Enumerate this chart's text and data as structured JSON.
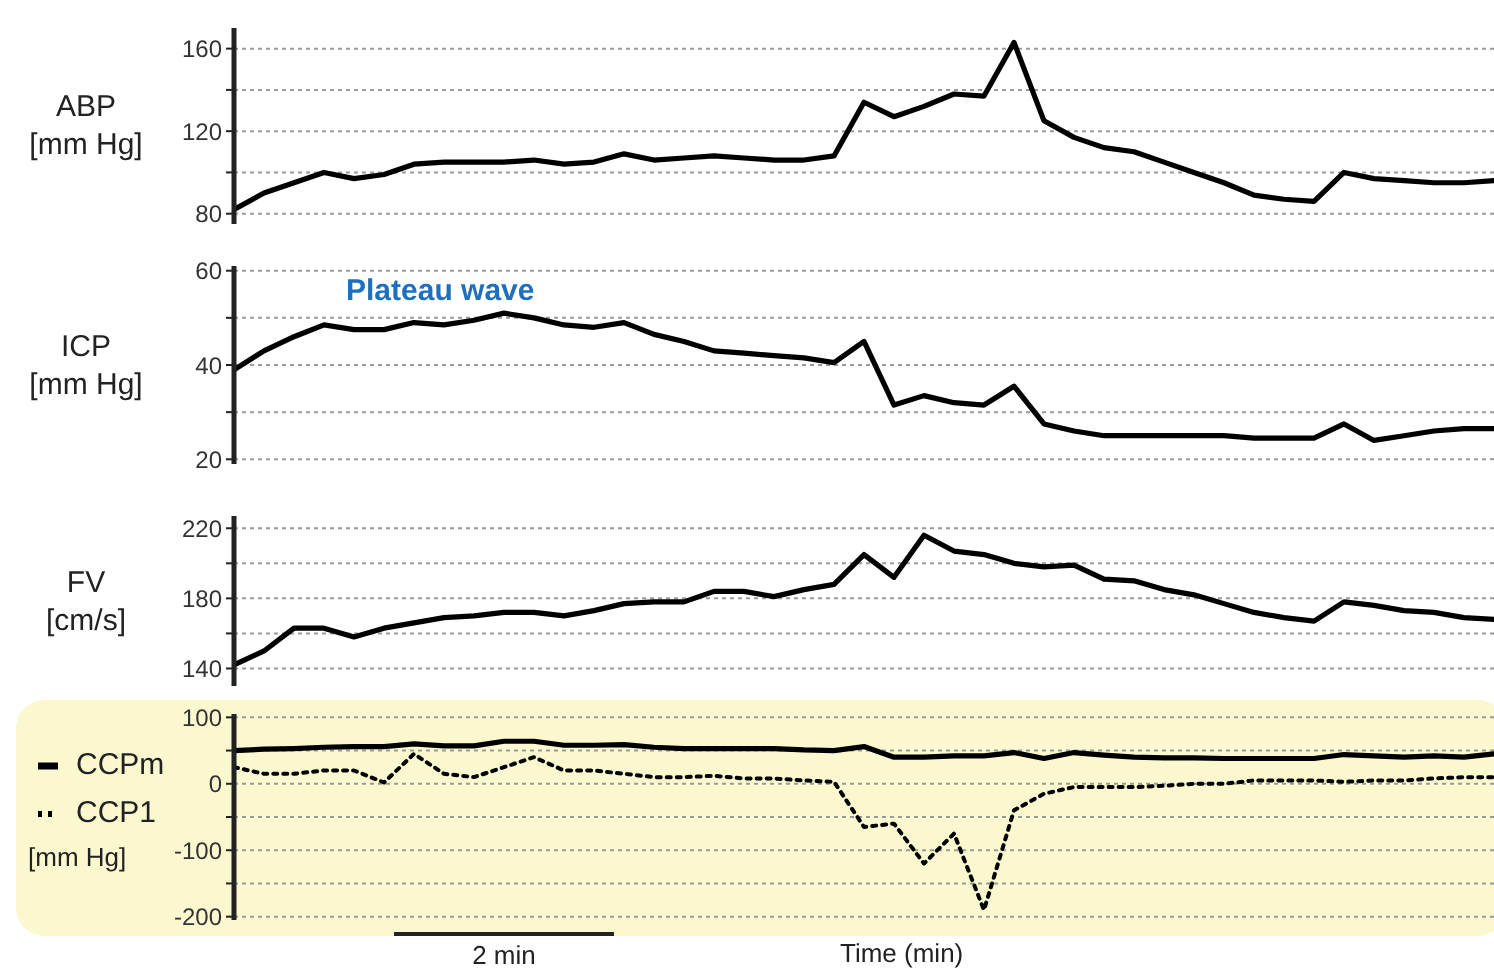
{
  "chart_data": [
    {
      "type": "line",
      "ylabel": "ABP\n[mm Hg]",
      "categories": [
        null,
        null,
        null,
        null,
        null,
        null,
        null,
        null,
        null,
        null,
        null,
        null,
        null,
        null,
        null,
        null,
        null,
        null,
        null,
        null,
        null,
        null,
        null,
        null,
        null,
        null,
        null,
        null,
        null,
        null,
        null,
        null,
        null,
        null,
        null,
        null,
        null,
        null,
        null,
        null,
        null,
        null,
        null
      ],
      "values": [
        82,
        90,
        95,
        100,
        97,
        99,
        104,
        105,
        105,
        105,
        106,
        104,
        105,
        109,
        106,
        107,
        108,
        107,
        106,
        106,
        108,
        134,
        127,
        132,
        138,
        137,
        163,
        125,
        117,
        112,
        110,
        105,
        100,
        95,
        89,
        87,
        86,
        100,
        97,
        96,
        95,
        95,
        96
      ],
      "color": "#000000",
      "ylim": [
        75,
        170
      ],
      "yticks": [
        80,
        {
          "value": 100,
          "label": null
        },
        120,
        {
          "value": 140,
          "label": null
        },
        160
      ],
      "grid": true,
      "tick_labels": "y",
      "legend": false,
      "marker": "none",
      "line_style": "solid"
    },
    {
      "type": "line",
      "ylabel": "ICP\n[mm Hg]",
      "annotations": [
        "Plateau wave"
      ],
      "categories": [
        null,
        null,
        null,
        null,
        null,
        null,
        null,
        null,
        null,
        null,
        null,
        null,
        null,
        null,
        null,
        null,
        null,
        null,
        null,
        null,
        null,
        null,
        null,
        null,
        null,
        null,
        null,
        null,
        null,
        null,
        null,
        null,
        null,
        null,
        null,
        null,
        null,
        null,
        null,
        null,
        null,
        null,
        null
      ],
      "values": [
        39,
        43,
        46,
        48.5,
        47.5,
        47.5,
        49,
        48.5,
        49.5,
        51,
        50,
        48.5,
        48,
        49,
        46.5,
        45,
        43,
        42.5,
        42,
        41.5,
        40.5,
        45,
        31.5,
        33.5,
        32,
        31.5,
        35.5,
        27.5,
        26,
        25,
        25,
        25,
        25,
        25,
        24.5,
        24.5,
        24.5,
        27.5,
        24,
        25,
        26,
        26.5,
        26.5
      ],
      "color": "#000000",
      "ylim": [
        19,
        61
      ],
      "yticks": [
        20,
        {
          "value": 30,
          "label": null
        },
        40,
        {
          "value": 50,
          "label": null
        },
        60
      ],
      "grid": true,
      "tick_labels": "y",
      "legend": false,
      "marker": "none",
      "line_style": "solid"
    },
    {
      "type": "line",
      "ylabel": "FV\n[cm/s]",
      "categories": [
        null,
        null,
        null,
        null,
        null,
        null,
        null,
        null,
        null,
        null,
        null,
        null,
        null,
        null,
        null,
        null,
        null,
        null,
        null,
        null,
        null,
        null,
        null,
        null,
        null,
        null,
        null,
        null,
        null,
        null,
        null,
        null,
        null,
        null,
        null,
        null,
        null,
        null,
        null,
        null,
        null,
        null,
        null
      ],
      "values": [
        142,
        150,
        163,
        163,
        158,
        163,
        166,
        169,
        170,
        172,
        172,
        170,
        173,
        177,
        178,
        178,
        184,
        184,
        181,
        185,
        188,
        205,
        192,
        216,
        207,
        205,
        200,
        198,
        199,
        191,
        190,
        185,
        182,
        177,
        172,
        169,
        167,
        178,
        176,
        173,
        172,
        169,
        168
      ],
      "color": "#000000",
      "ylim": [
        130,
        227
      ],
      "yticks": [
        140,
        {
          "value": 160,
          "label": null
        },
        180,
        {
          "value": 200,
          "label": null
        },
        220
      ],
      "grid": true,
      "tick_labels": "y",
      "legend": false,
      "marker": "none",
      "line_style": "solid"
    },
    {
      "type": "line",
      "ylabel": "[mm Hg]",
      "xlabel": "Time (min)",
      "annotations": [
        "2 min"
      ],
      "categories": [
        null,
        null,
        null,
        null,
        null,
        null,
        null,
        null,
        null,
        null,
        null,
        null,
        null,
        null,
        null,
        null,
        null,
        null,
        null,
        null,
        null,
        null,
        null,
        null,
        null,
        null,
        null,
        null,
        null,
        null,
        null,
        null,
        null,
        null,
        null,
        null,
        null,
        null,
        null,
        null,
        null,
        null,
        null
      ],
      "series": [
        {
          "name": "CCPm",
          "color": "#000000",
          "line_style": "solid",
          "values": [
            50,
            52,
            53,
            55,
            56,
            56,
            60,
            57,
            57,
            64,
            64,
            58,
            58,
            59,
            55,
            53,
            53,
            53,
            53,
            51,
            50,
            56,
            40,
            40,
            42,
            42,
            47,
            38,
            47,
            43,
            40,
            39,
            39,
            38,
            38,
            38,
            38,
            44,
            42,
            40,
            42,
            40,
            45
          ]
        },
        {
          "name": "CCP1",
          "color": "#000000",
          "line_style": "dotted",
          "values": [
            25,
            15,
            15,
            20,
            20,
            2,
            45,
            15,
            10,
            25,
            40,
            20,
            20,
            15,
            10,
            10,
            12,
            8,
            8,
            5,
            3,
            -65,
            -60,
            -120,
            -75,
            -190,
            -40,
            -15,
            -5,
            -5,
            -5,
            -3,
            0,
            0,
            5,
            5,
            5,
            3,
            5,
            5,
            8,
            10,
            10
          ]
        }
      ],
      "ylim": [
        -205,
        105
      ],
      "yticks": [
        -200,
        {
          "value": -150,
          "label": null
        },
        -100,
        {
          "value": -50,
          "label": null
        },
        0,
        {
          "value": 50,
          "label": null
        },
        100
      ],
      "grid": true,
      "tick_labels": "y",
      "legend": "left",
      "marker": "none"
    }
  ]
}
